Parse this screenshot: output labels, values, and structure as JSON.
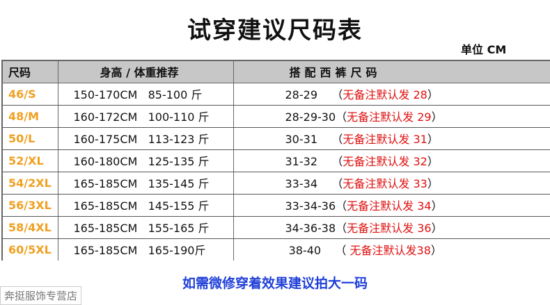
{
  "title": "试穿建议尺码表",
  "unit": "单位 CM",
  "headers": [
    "尺码",
    "身高 / 体重推荐",
    "搭配西裤尺码"
  ],
  "rows": [
    {
      "size": "46/S",
      "body": "150-170CM   85-100 斤",
      "pants": "28-29",
      "note_open": "    （",
      "note": "无备注默认发 28",
      "note_close": "）"
    },
    {
      "size": "48/M",
      "body": "160-172CM   100-110 斤",
      "pants": "28-29-30",
      "note_open": "（",
      "note": "无备注默认发 29",
      "note_close": "）"
    },
    {
      "size": "50/L",
      "body": "160-175CM   113-123 斤",
      "pants": "30-31",
      "note_open": "    （",
      "note": "无备注默认发 31",
      "note_close": "）"
    },
    {
      "size": "52/XL",
      "body": "160-180CM   125-135 斤",
      "pants": "31-32",
      "note_open": "    （",
      "note": "无备注默认发 32",
      "note_close": "）"
    },
    {
      "size": "54/2XL",
      "body": "165-185CM   135-145 斤",
      "pants": "33-34",
      "note_open": "    （",
      "note": "无备注默认发 33",
      "note_close": "）"
    },
    {
      "size": "56/3XL",
      "body": "165-185CM   145-155 斤",
      "pants": "33-34-36",
      "note_open": "（",
      "note": "无备注默认发 34",
      "note_close": "）"
    },
    {
      "size": "58/4XL",
      "body": "165-185CM   155-165 斤",
      "pants": "34-36-38",
      "note_open": "（",
      "note": "无备注默认发 36",
      "note_close": "）"
    },
    {
      "size": "60/5XL",
      "body": "165-185CM   165-190斤",
      "pants": " 38-40",
      "note_open": "    （ ",
      "note": "无备注默认发38",
      "note_close": "）"
    }
  ],
  "footer": "如需微修穿着效果建议拍大一码",
  "watermark": "奔挺服饰专营店",
  "colors": {
    "size": "#f0a020",
    "note": "#e01010",
    "footer": "#1f3fd8",
    "header_bg": "#c7c7c7"
  }
}
